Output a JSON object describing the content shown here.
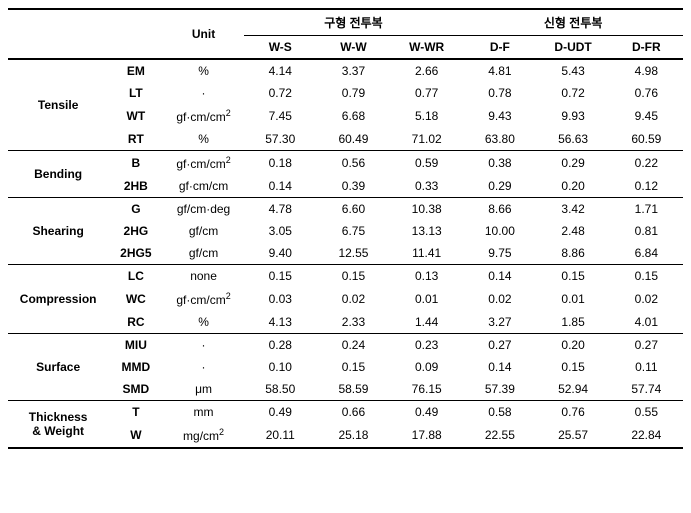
{
  "headers": {
    "unit": "Unit",
    "group1": "구형 전투복",
    "group2": "신형 전투복",
    "cols": [
      "W-S",
      "W-W",
      "W-WR",
      "D-F",
      "D-UDT",
      "D-FR"
    ]
  },
  "categories": [
    {
      "name": "Tensile",
      "rows": [
        {
          "prop": "EM",
          "unit": "%",
          "vals": [
            "4.14",
            "3.37",
            "2.66",
            "4.81",
            "5.43",
            "4.98"
          ]
        },
        {
          "prop": "LT",
          "unit": "·",
          "vals": [
            "0.72",
            "0.79",
            "0.77",
            "0.78",
            "0.72",
            "0.76"
          ]
        },
        {
          "prop": "WT",
          "unit_html": "gf·cm/cm<span class='sup'>2</span>",
          "vals": [
            "7.45",
            "6.68",
            "5.18",
            "9.43",
            "9.93",
            "9.45"
          ]
        },
        {
          "prop": "RT",
          "unit": "%",
          "vals": [
            "57.30",
            "60.49",
            "71.02",
            "63.80",
            "56.63",
            "60.59"
          ]
        }
      ]
    },
    {
      "name": "Bending",
      "rows": [
        {
          "prop": "B",
          "unit_html": "gf·cm/cm<span class='sup'>2</span>",
          "vals": [
            "0.18",
            "0.56",
            "0.59",
            "0.38",
            "0.29",
            "0.22"
          ]
        },
        {
          "prop": "2HB",
          "unit": "gf·cm/cm",
          "vals": [
            "0.14",
            "0.39",
            "0.33",
            "0.29",
            "0.20",
            "0.12"
          ]
        }
      ]
    },
    {
      "name": "Shearing",
      "rows": [
        {
          "prop": "G",
          "unit": "gf/cm·deg",
          "vals": [
            "4.78",
            "6.60",
            "10.38",
            "8.66",
            "3.42",
            "1.71"
          ]
        },
        {
          "prop": "2HG",
          "unit": "gf/cm",
          "vals": [
            "3.05",
            "6.75",
            "13.13",
            "10.00",
            "2.48",
            "0.81"
          ]
        },
        {
          "prop": "2HG5",
          "unit": "gf/cm",
          "vals": [
            "9.40",
            "12.55",
            "11.41",
            "9.75",
            "8.86",
            "6.84"
          ]
        }
      ]
    },
    {
      "name": "Compression",
      "rows": [
        {
          "prop": "LC",
          "unit": "none",
          "vals": [
            "0.15",
            "0.15",
            "0.13",
            "0.14",
            "0.15",
            "0.15"
          ]
        },
        {
          "prop": "WC",
          "unit_html": "gf·cm/cm<span class='sup'>2</span>",
          "vals": [
            "0.03",
            "0.02",
            "0.01",
            "0.02",
            "0.01",
            "0.02"
          ]
        },
        {
          "prop": "RC",
          "unit": "%",
          "vals": [
            "4.13",
            "2.33",
            "1.44",
            "3.27",
            "1.85",
            "4.01"
          ]
        }
      ]
    },
    {
      "name": "Surface",
      "rows": [
        {
          "prop": "MIU",
          "unit": "·",
          "vals": [
            "0.28",
            "0.24",
            "0.23",
            "0.27",
            "0.20",
            "0.27"
          ]
        },
        {
          "prop": "MMD",
          "unit": "·",
          "vals": [
            "0.10",
            "0.15",
            "0.09",
            "0.14",
            "0.15",
            "0.11"
          ]
        },
        {
          "prop": "SMD",
          "unit": "μm",
          "vals": [
            "58.50",
            "58.59",
            "76.15",
            "57.39",
            "52.94",
            "57.74"
          ]
        }
      ]
    },
    {
      "name_html": "Thickness<br>&amp; Weight",
      "rows": [
        {
          "prop": "T",
          "unit": "mm",
          "vals": [
            "0.49",
            "0.66",
            "0.49",
            "0.58",
            "0.76",
            "0.55"
          ]
        },
        {
          "prop": "W",
          "unit_html": "mg/cm<span class='sup'>2</span>",
          "vals": [
            "20.11",
            "25.18",
            "17.88",
            "22.55",
            "25.57",
            "22.84"
          ]
        }
      ]
    }
  ]
}
